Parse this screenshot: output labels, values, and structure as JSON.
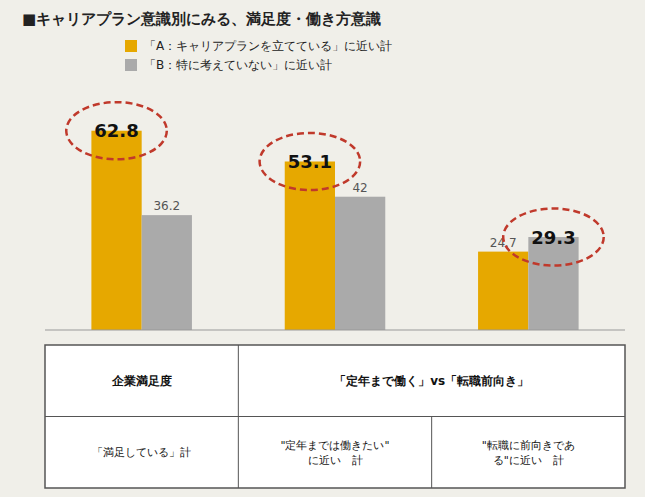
{
  "chart_data": {
    "type": "bar",
    "title": "■キャリアプラン意識別にみる、満足度・働き方意識",
    "categories": [
      null,
      null,
      null
    ],
    "series": [
      {
        "name": "「A：キャリアプランを立てている」に近い計",
        "color": "#E6A800",
        "values": [
          62.8,
          53.1,
          24.7
        ],
        "highlight": [
          true,
          true,
          false
        ]
      },
      {
        "name": "「B：特に考えていない」に近い計",
        "color": "#AAAAAA",
        "values": [
          36.2,
          42.0,
          29.3
        ],
        "highlight": [
          false,
          false,
          true
        ]
      }
    ],
    "highlight_color": "#C0392B",
    "background": "#F0EFE9",
    "ylim": [
      0,
      75
    ],
    "grid": false,
    "tick_labels": false,
    "data_labels": true,
    "legend": "top",
    "table": {
      "rows": [
        [
          "企業満足度",
          "「定年まで働く」vs「転職前向き」"
        ],
        [
          "「満足している」計",
          "\"定年までは働きたい\"\nに近い　計",
          "\"転職に前向きであ\nる\"に近い　計"
        ]
      ]
    }
  }
}
